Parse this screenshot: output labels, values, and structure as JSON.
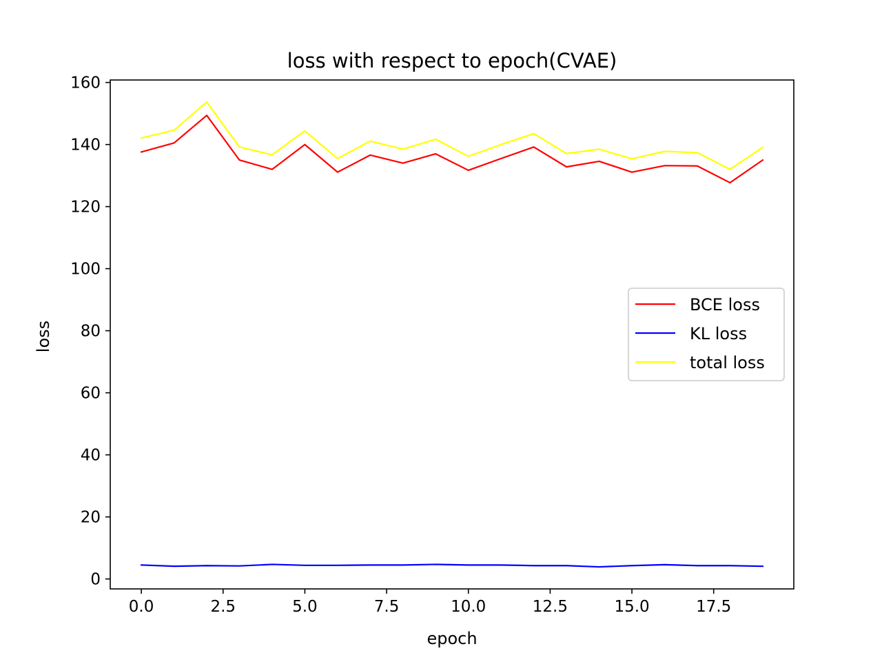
{
  "chart_data": {
    "type": "line",
    "title": "loss with respect to epoch(CVAE)",
    "xlabel": "epoch",
    "ylabel": "loss",
    "x": [
      0,
      1,
      2,
      3,
      4,
      5,
      6,
      7,
      8,
      9,
      10,
      11,
      12,
      13,
      14,
      15,
      16,
      17,
      18,
      19
    ],
    "xlim": [
      -0.95,
      19.95
    ],
    "ylim": [
      -3.2,
      160.8
    ],
    "xticks": [
      0.0,
      2.5,
      5.0,
      7.5,
      10.0,
      12.5,
      15.0,
      17.5
    ],
    "xtick_labels": [
      "0.0",
      "2.5",
      "5.0",
      "7.5",
      "10.0",
      "12.5",
      "15.0",
      "17.5"
    ],
    "yticks": [
      0,
      20,
      40,
      60,
      80,
      100,
      120,
      140,
      160
    ],
    "ytick_labels": [
      "0",
      "20",
      "40",
      "60",
      "80",
      "100",
      "120",
      "140",
      "160"
    ],
    "grid": false,
    "legend_position": "center-right",
    "series": [
      {
        "name": "BCE loss",
        "color": "#ff0000",
        "values": [
          137.6,
          140.5,
          149.4,
          135.0,
          132.0,
          140.0,
          131.1,
          136.6,
          134.0,
          137.0,
          131.7,
          135.5,
          139.2,
          132.8,
          134.6,
          131.1,
          133.2,
          133.1,
          127.7,
          135.0
        ]
      },
      {
        "name": "KL loss",
        "color": "#0000ff",
        "values": [
          4.5,
          4.1,
          4.3,
          4.2,
          4.7,
          4.4,
          4.4,
          4.5,
          4.5,
          4.7,
          4.5,
          4.5,
          4.3,
          4.3,
          3.9,
          4.3,
          4.6,
          4.3,
          4.3,
          4.1
        ]
      },
      {
        "name": "total loss",
        "color": "#ffff00",
        "values": [
          142.1,
          144.6,
          153.7,
          139.2,
          136.7,
          144.4,
          135.5,
          141.1,
          138.5,
          141.7,
          136.2,
          140.0,
          143.5,
          137.1,
          138.5,
          135.4,
          137.8,
          137.4,
          132.0,
          139.1
        ]
      }
    ]
  }
}
